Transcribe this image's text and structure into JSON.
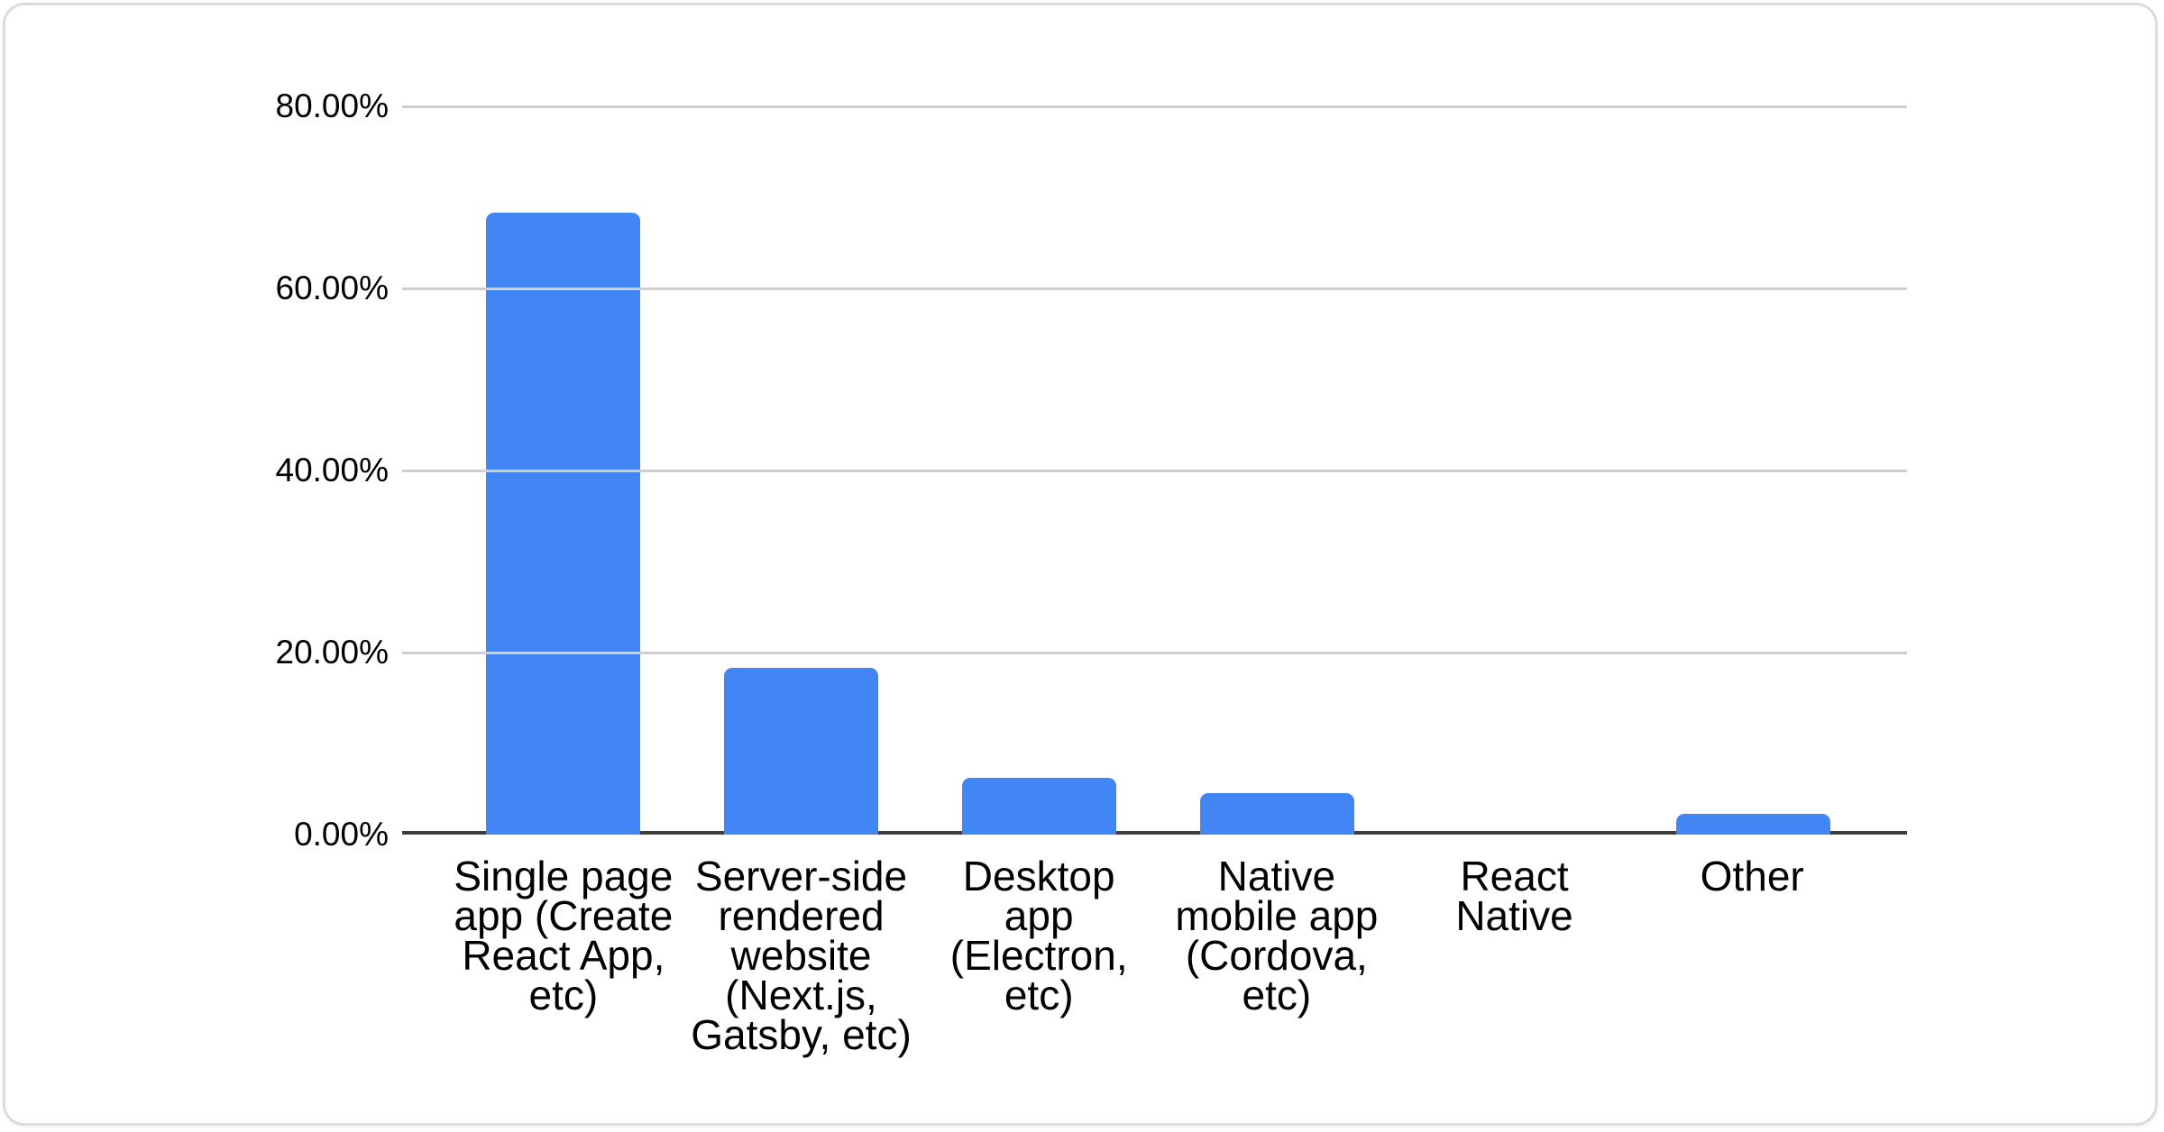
{
  "chart_data": {
    "type": "bar",
    "title": "",
    "xlabel": "",
    "ylabel": "",
    "categories": [
      "Single page app (Create React App, etc)",
      "Server-side rendered website (Next.js, Gatsby, etc)",
      "Desktop app (Electron, etc)",
      "Native mobile app (Cordova, etc)",
      "React Native",
      "Other"
    ],
    "category_lines": [
      [
        "Single page",
        "app (Create",
        "React App,",
        "etc)"
      ],
      [
        "Server-side",
        "rendered",
        "website",
        "(Next.js,",
        "Gatsby, etc)"
      ],
      [
        "Desktop",
        "app",
        "(Electron,",
        "etc)"
      ],
      [
        "Native",
        "mobile app",
        "(Cordova,",
        "etc)"
      ],
      [
        "React",
        "Native"
      ],
      [
        "Other"
      ]
    ],
    "values": [
      68.3,
      18.3,
      6.2,
      4.6,
      0,
      2.3
    ],
    "unit": "%",
    "ylim": [
      0,
      80
    ],
    "yticks": [
      {
        "label": "0.00%",
        "value": 0
      },
      {
        "label": "20.00%",
        "value": 20
      },
      {
        "label": "40.00%",
        "value": 40
      },
      {
        "label": "60.00%",
        "value": 60
      },
      {
        "label": "80.00%",
        "value": 80
      }
    ],
    "grid": true,
    "legend": "none",
    "colors": {
      "bar": "#4285f4",
      "gridline": "#cfcfcf",
      "axis": "#3c3c3c",
      "text": "#000000",
      "card_border": "#dcdce1",
      "background": "#ffffff"
    }
  }
}
